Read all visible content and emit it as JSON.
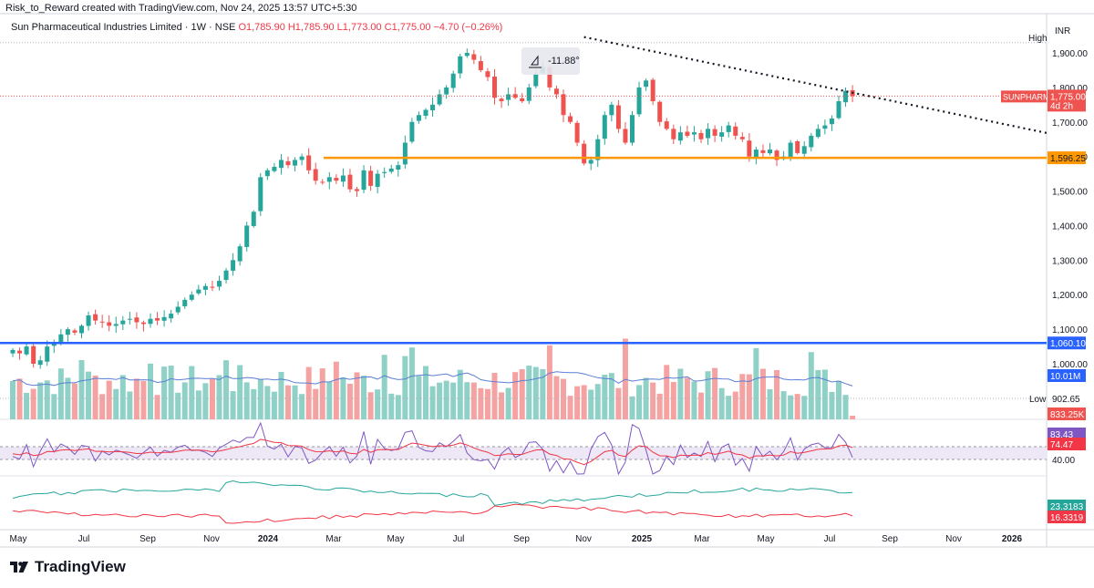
{
  "topbar": {
    "attribution": "Risk_to_Reward created with TradingView.com, Nov 24, 2025 13:57 UTC+5:30"
  },
  "header": {
    "title": "Sun Pharmaceutical Industries Limited · 1W · NSE",
    "ohlc": "O1,785.90  H1,785.90  L1,773.00  C1,775.00  −4.70 (−0.26%)"
  },
  "price_axis": {
    "currency": "INR",
    "ticks": [
      "1,900.00",
      "1,800.00",
      "1,700.00",
      "1,600.00",
      "1,500.00",
      "1,400.00",
      "1,300.00",
      "1,200.00",
      "1,100.00",
      "1,000.00"
    ],
    "high_label": "High",
    "low_label": "Low",
    "low_value": "902.65",
    "symbol_tag": "SUNPHARMA",
    "last_price": "1,775.00",
    "countdown": "4d 2h",
    "support_level": "1,596.25",
    "line_level": "1,060.10",
    "volume_ma": "10.01M",
    "volume_last": "833.25K",
    "rsi_value": "83.43",
    "rsi_ma": "74.47",
    "rsi_level": "40.00",
    "adx_plus": "23.3183",
    "adx_minus": "16.3319"
  },
  "time_axis": [
    "May",
    "Jul",
    "Sep",
    "Nov",
    "2024",
    "Mar",
    "May",
    "Jul",
    "Sep",
    "Nov",
    "2025",
    "Mar",
    "May",
    "Jul",
    "Sep",
    "Nov",
    "2026"
  ],
  "annotation": {
    "angle_label": "-11.88°"
  },
  "footer": {
    "brand": "TradingView"
  },
  "colors": {
    "up": "#26a69a",
    "down": "#ef5350",
    "support": "#ff9800",
    "blue_line": "#2962ff",
    "vol_up": "#8fd0c7",
    "vol_down": "#f5a3a2",
    "rsi_line": "#7e57c2",
    "rsi_ma": "#f23645",
    "adx_plus": "#26a69a",
    "adx_minus": "#f23645"
  },
  "chart_data": {
    "type": "candlestick",
    "interval": "1W",
    "symbol": "SUNPHARMA",
    "exchange": "NSE",
    "ylim": [
      900,
      1960
    ],
    "x_labels": [
      "May",
      "Jul",
      "Sep",
      "Nov",
      "2024",
      "Mar",
      "May",
      "Jul",
      "Sep",
      "Nov",
      "2025",
      "Mar",
      "May",
      "Jul",
      "Sep",
      "Nov",
      "2026"
    ],
    "closes": [
      1040,
      1030,
      1050,
      1000,
      1010,
      1050,
      1060,
      1085,
      1100,
      1090,
      1110,
      1140,
      1125,
      1120,
      1110,
      1115,
      1125,
      1130,
      1120,
      1115,
      1130,
      1125,
      1135,
      1145,
      1165,
      1185,
      1200,
      1215,
      1225,
      1220,
      1240,
      1270,
      1300,
      1340,
      1400,
      1440,
      1540,
      1560,
      1570,
      1590,
      1575,
      1590,
      1600,
      1560,
      1530,
      1525,
      1540,
      1530,
      1545,
      1505,
      1500,
      1560,
      1515,
      1550,
      1555,
      1565,
      1575,
      1640,
      1700,
      1720,
      1735,
      1750,
      1780,
      1800,
      1840,
      1890,
      1900,
      1880,
      1850,
      1830,
      1770,
      1760,
      1780,
      1770,
      1760,
      1800,
      1840,
      1860,
      1800,
      1780,
      1720,
      1700,
      1640,
      1580,
      1590,
      1650,
      1720,
      1750,
      1680,
      1640,
      1720,
      1800,
      1820,
      1760,
      1700,
      1680,
      1650,
      1670,
      1660,
      1670,
      1650,
      1680,
      1660,
      1670,
      1690,
      1660,
      1650,
      1600,
      1620,
      1610,
      1620,
      1590,
      1600,
      1640,
      1610,
      1630,
      1660,
      1680,
      1690,
      1710,
      1760,
      1790,
      1775
    ],
    "support_level": 1596.25,
    "horizontal_line": 1060.1,
    "period_high": 1929.8,
    "period_low": 902.65,
    "last_price": 1775.0,
    "trendline": [
      {
        "week": 93,
        "price": 1930
      },
      {
        "week": 186,
        "price": 1655
      }
    ],
    "trendline_angle": "-11.88°",
    "volume": {
      "ma": "10.01M",
      "last": "833.25K"
    },
    "rsi": {
      "value": 83.43,
      "ma": 74.47,
      "band": [
        40,
        60
      ]
    },
    "adx": {
      "plus": 23.3183,
      "minus": 16.3319
    }
  }
}
